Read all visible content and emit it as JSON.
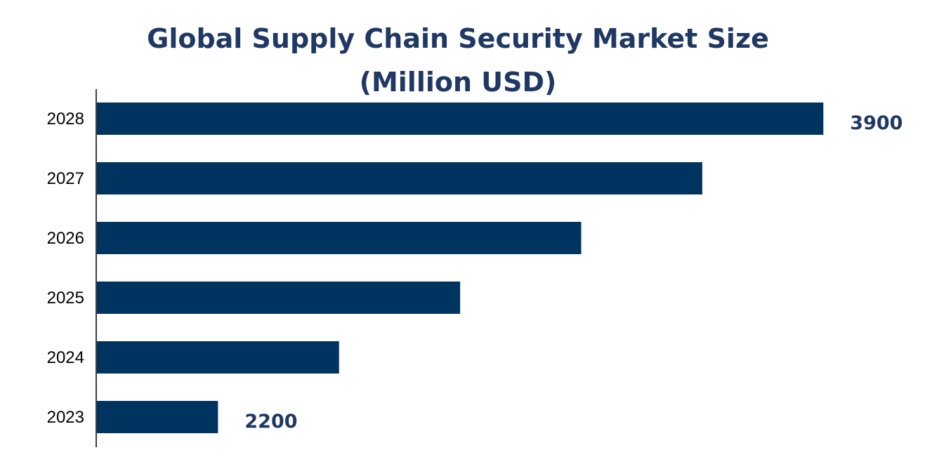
{
  "chart_data": {
    "type": "bar",
    "orientation": "horizontal",
    "title_lines": [
      "Global Supply Chain Security Market Size",
      "(Million USD)"
    ],
    "categories": [
      "2028",
      "2027",
      "2026",
      "2025",
      "2024",
      "2023"
    ],
    "values": [
      3900,
      3560,
      3220,
      2880,
      2540,
      2200
    ],
    "data_labels": {
      "2028": "3900",
      "2023": "2200"
    },
    "xlim": [
      1860,
      4000
    ],
    "xlabel": "",
    "ylabel": "",
    "grid": false,
    "legend": "none",
    "bar_color": "#003460",
    "title_color": "#1f3864"
  }
}
